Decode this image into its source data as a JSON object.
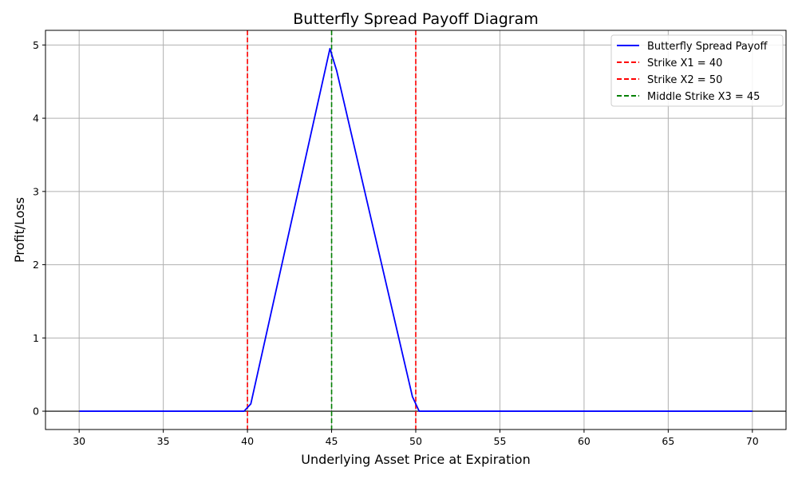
{
  "chart_data": {
    "type": "line",
    "title": "Butterfly Spread Payoff Diagram",
    "xlabel": "Underlying Asset Price at Expiration",
    "ylabel": "Profit/Loss",
    "xlim": [
      28,
      72
    ],
    "ylim": [
      -0.25,
      5.2
    ],
    "xticks": [
      30,
      35,
      40,
      45,
      50,
      55,
      60,
      65,
      70
    ],
    "yticks": [
      0,
      1,
      2,
      3,
      4,
      5
    ],
    "grid": true,
    "legend_position": "top-right",
    "zero_line": true,
    "series": [
      {
        "name": "Butterfly Spread Payoff",
        "color": "#0000ff",
        "style": "solid",
        "x": [
          30,
          39.8,
          40.2,
          44.9,
          45.3,
          49.8,
          50.2,
          70
        ],
        "y": [
          0,
          0,
          0.1,
          4.95,
          4.65,
          0.2,
          0,
          0
        ]
      }
    ],
    "vlines": [
      {
        "name": "Strike X1 = 40",
        "x": 40,
        "color": "#ff0000",
        "style": "dashed"
      },
      {
        "name": "Strike X2 = 50",
        "x": 50,
        "color": "#ff0000",
        "style": "dashed"
      },
      {
        "name": "Middle Strike X3 = 45",
        "x": 45,
        "color": "#008000",
        "style": "dashed"
      }
    ]
  }
}
